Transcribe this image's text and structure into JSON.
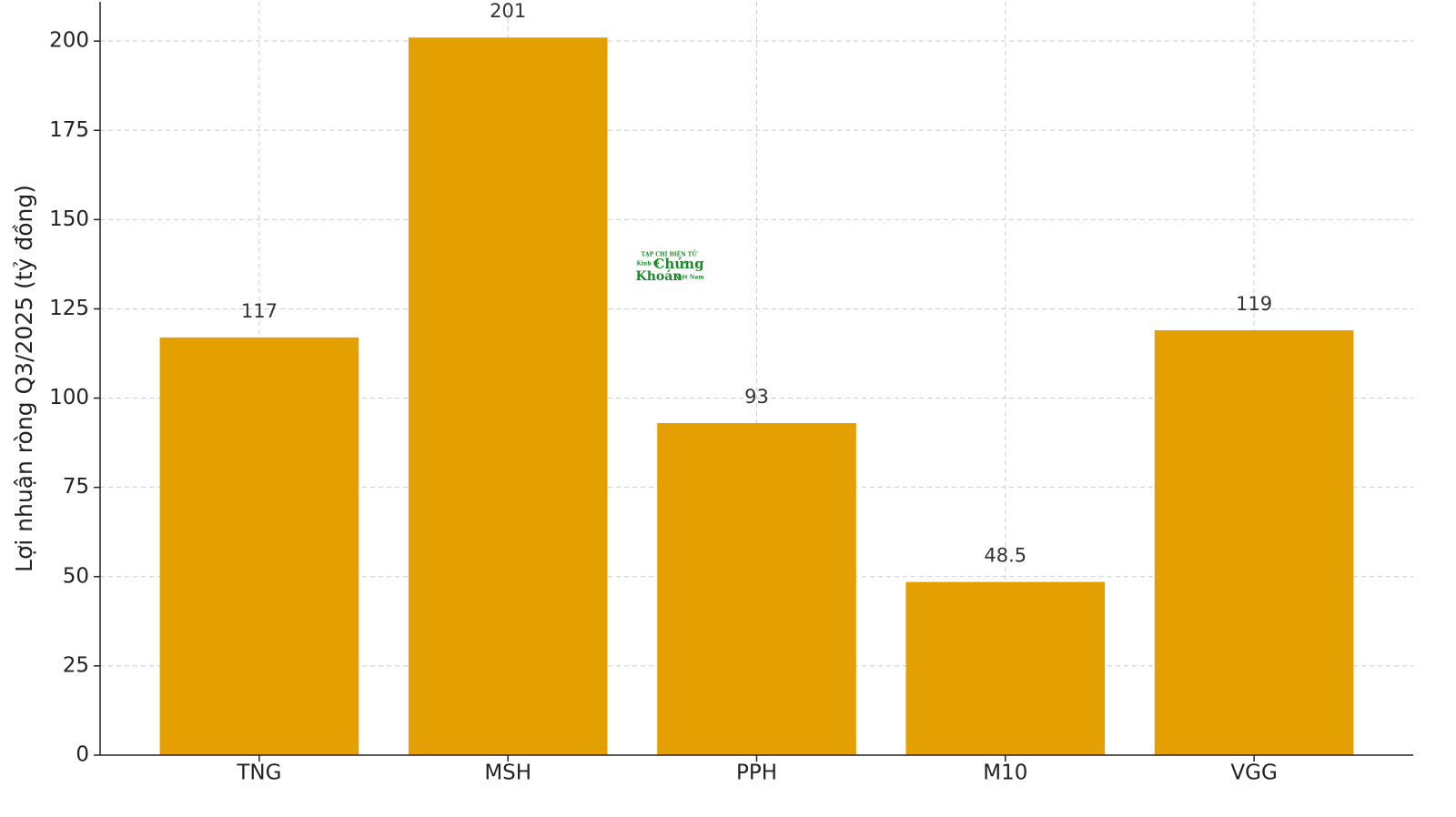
{
  "chart_data": {
    "type": "bar",
    "y_label": "Lợi nhuận ròng Q3/2025 (tỷ đồng)",
    "categories": [
      "TNG",
      "MSH",
      "PPH",
      "M10",
      "VGG"
    ],
    "values": [
      117,
      201,
      93,
      48.5,
      119
    ],
    "color": "#e3a000",
    "ylim": [
      0,
      211
    ],
    "yticks": [
      0,
      25,
      50,
      75,
      100,
      125,
      150,
      175,
      200
    ],
    "grid": true,
    "watermark": [
      "TẠP CHÍ ĐIỆN TỬ",
      "Kinh tế",
      "Chứng",
      "Khoán",
      "Việt Nam"
    ]
  }
}
